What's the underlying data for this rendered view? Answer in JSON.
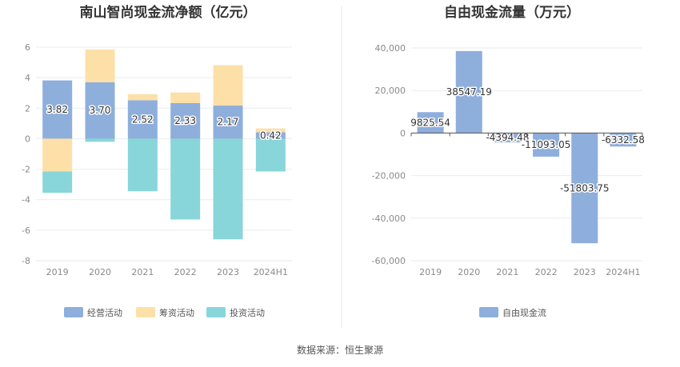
{
  "source_note": "数据来源：恒生聚源",
  "chart_data": [
    {
      "type": "bar",
      "stacked": true,
      "title": "南山智尚现金流净额（亿元）",
      "categories": [
        "2019",
        "2020",
        "2021",
        "2022",
        "2023",
        "2024H1"
      ],
      "ylim": [
        -8,
        6
      ],
      "yticks": [
        -8,
        -6,
        -4,
        -2,
        0,
        2,
        4,
        6
      ],
      "grid": true,
      "legend_position": "bottom",
      "series": [
        {
          "name": "经营活动",
          "color": "#8eaedc",
          "values": [
            3.82,
            3.7,
            2.52,
            2.33,
            2.17,
            0.42
          ],
          "show_labels": true
        },
        {
          "name": "筹资活动",
          "color": "#fde0a8",
          "values": [
            -2.15,
            2.15,
            0.4,
            0.7,
            2.65,
            0.25
          ],
          "show_labels": false
        },
        {
          "name": "投资活动",
          "color": "#88d6da",
          "values": [
            -1.4,
            -0.2,
            -3.45,
            -5.3,
            -6.6,
            -2.15
          ],
          "show_labels": false
        }
      ]
    },
    {
      "type": "bar",
      "title": "自由现金流量（万元）",
      "categories": [
        "2019",
        "2020",
        "2021",
        "2022",
        "2023",
        "2024H1"
      ],
      "ylim": [
        -60000,
        40000
      ],
      "yticks": [
        -60000,
        -40000,
        -20000,
        0,
        20000,
        40000
      ],
      "ytick_labels": [
        "-60,000",
        "-40,000",
        "-20,000",
        "0",
        "20,000",
        "40,000"
      ],
      "grid": true,
      "legend_position": "bottom",
      "series": [
        {
          "name": "自由现金流",
          "color": "#8eaedc",
          "values": [
            9825.54,
            38547.19,
            -4394.48,
            -11093.05,
            -51803.75,
            -6332.58
          ],
          "labels": [
            "9825.54",
            "38547.19",
            "-4394.48",
            "-11093.05",
            "-51803.75",
            "-6332.58"
          ]
        }
      ]
    }
  ]
}
